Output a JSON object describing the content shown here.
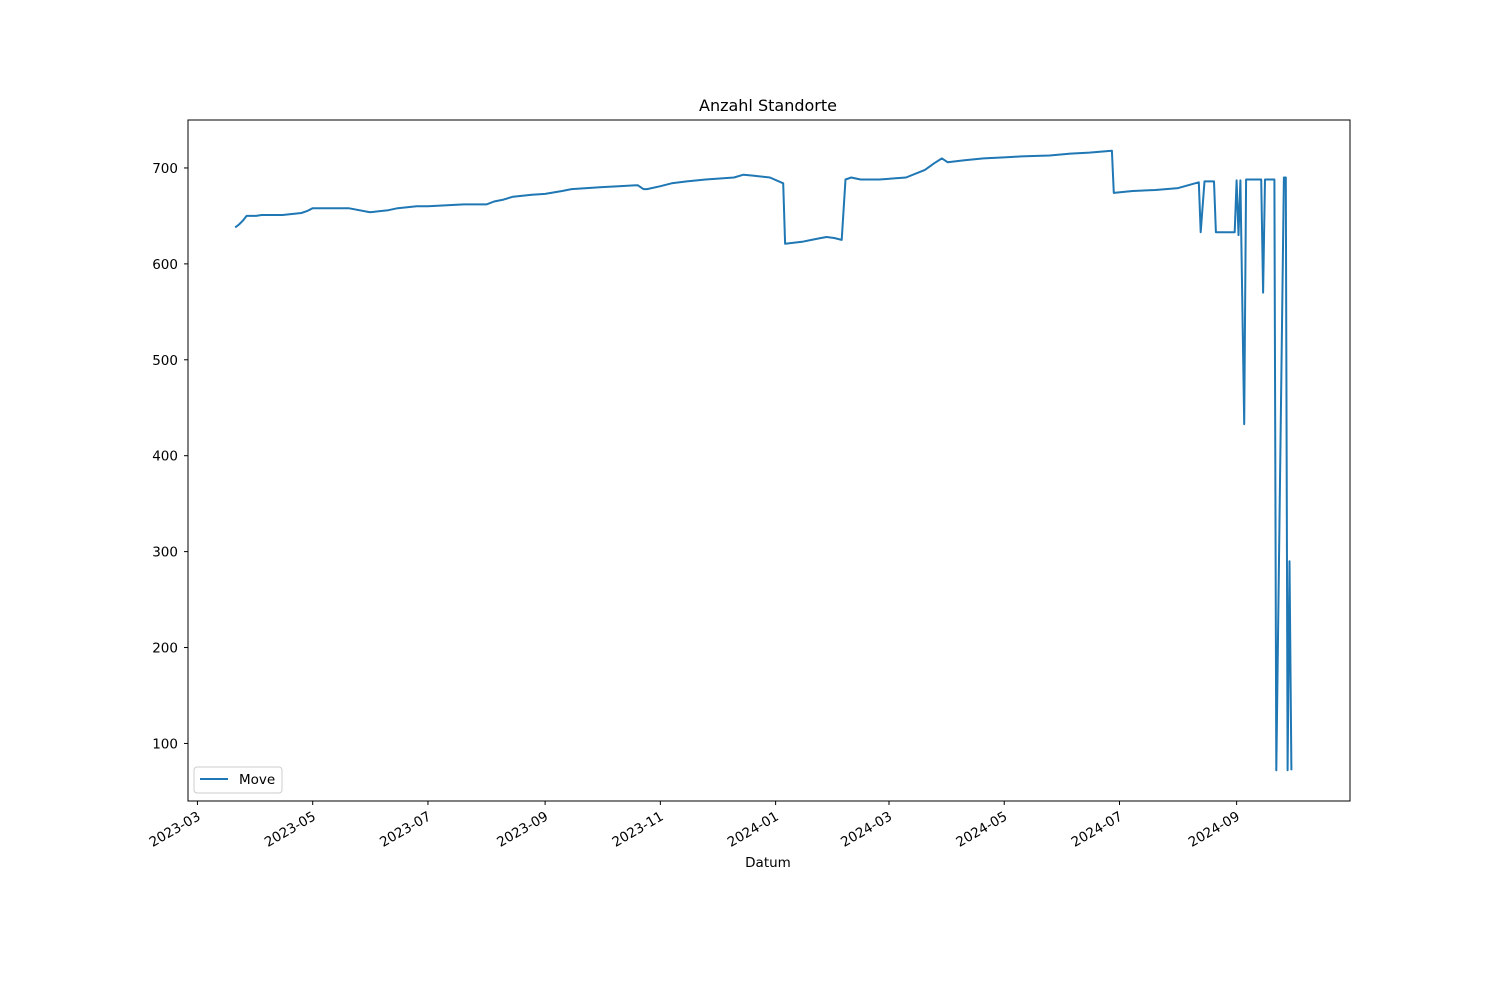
{
  "chart_data": {
    "type": "line",
    "title": "Anzahl Standorte",
    "xlabel": "Datum",
    "ylabel": "",
    "x_type": "date",
    "xlim": [
      "2023-02-24",
      "2024-10-31"
    ],
    "ylim": [
      40,
      750
    ],
    "x_ticks": [
      "2023-03-01",
      "2023-05-01",
      "2023-07-01",
      "2023-09-01",
      "2023-11-01",
      "2024-01-01",
      "2024-03-01",
      "2024-05-01",
      "2024-07-01",
      "2024-09-01"
    ],
    "x_tick_labels": [
      "2023-03",
      "2023-05",
      "2023-07",
      "2023-09",
      "2023-11",
      "2024-01",
      "2024-03",
      "2024-05",
      "2024-07",
      "2024-09"
    ],
    "y_ticks": [
      100,
      200,
      300,
      400,
      500,
      600,
      700
    ],
    "y_tick_labels": [
      "100",
      "200",
      "300",
      "400",
      "500",
      "600",
      "700"
    ],
    "grid": false,
    "legend_position": "lower-left",
    "color": "#1f77b4",
    "series": [
      {
        "name": "Move",
        "x": [
          "2023-03-21",
          "2023-03-23",
          "2023-03-25",
          "2023-03-27",
          "2023-04-01",
          "2023-04-04",
          "2023-04-15",
          "2023-04-20",
          "2023-04-25",
          "2023-04-28",
          "2023-05-01",
          "2023-05-05",
          "2023-05-10",
          "2023-05-20",
          "2023-05-31",
          "2023-06-01",
          "2023-06-10",
          "2023-06-15",
          "2023-06-20",
          "2023-06-25",
          "2023-07-01",
          "2023-07-20",
          "2023-08-01",
          "2023-08-05",
          "2023-08-10",
          "2023-08-15",
          "2023-08-25",
          "2023-09-01",
          "2023-09-10",
          "2023-09-15",
          "2023-10-01",
          "2023-10-10",
          "2023-10-20",
          "2023-10-23",
          "2023-10-25",
          "2023-11-01",
          "2023-11-07",
          "2023-11-15",
          "2023-11-25",
          "2023-12-10",
          "2023-12-15",
          "2023-12-20",
          "2023-12-29",
          "2024-01-05",
          "2024-01-06",
          "2024-01-15",
          "2024-01-20",
          "2024-01-25",
          "2024-01-28",
          "2024-02-01",
          "2024-02-05",
          "2024-02-07",
          "2024-02-10",
          "2024-02-15",
          "2024-02-25",
          "2024-03-10",
          "2024-03-20",
          "2024-03-25",
          "2024-03-29",
          "2024-04-01",
          "2024-04-10",
          "2024-04-20",
          "2024-05-01",
          "2024-05-10",
          "2024-05-25",
          "2024-06-05",
          "2024-06-15",
          "2024-06-27",
          "2024-06-28",
          "2024-07-08",
          "2024-07-20",
          "2024-08-01",
          "2024-08-10",
          "2024-08-12",
          "2024-08-13",
          "2024-08-15",
          "2024-08-20",
          "2024-08-21",
          "2024-08-31",
          "2024-09-01",
          "2024-09-02",
          "2024-09-03",
          "2024-09-05",
          "2024-09-06",
          "2024-09-07",
          "2024-09-14",
          "2024-09-15",
          "2024-09-16",
          "2024-09-21",
          "2024-09-22",
          "2024-09-26",
          "2024-09-27",
          "2024-09-28",
          "2024-09-29",
          "2024-09-30"
        ],
        "values": [
          638,
          641,
          645,
          650,
          650,
          651,
          651,
          652,
          653,
          655,
          658,
          658,
          658,
          658,
          654,
          654,
          656,
          658,
          659,
          660,
          660,
          662,
          662,
          665,
          667,
          670,
          672,
          673,
          676,
          678,
          680,
          681,
          682,
          678,
          678,
          681,
          684,
          686,
          688,
          690,
          693,
          692,
          690,
          684,
          621,
          623,
          625,
          627,
          628,
          627,
          625,
          688,
          690,
          688,
          688,
          690,
          698,
          705,
          710,
          706,
          708,
          710,
          711,
          712,
          713,
          715,
          716,
          718,
          674,
          676,
          677,
          679,
          684,
          685,
          633,
          686,
          686,
          633,
          633,
          687,
          630,
          687,
          433,
          688,
          688,
          688,
          570,
          688,
          688,
          72,
          690,
          690,
          72,
          290,
          72
        ]
      }
    ]
  }
}
